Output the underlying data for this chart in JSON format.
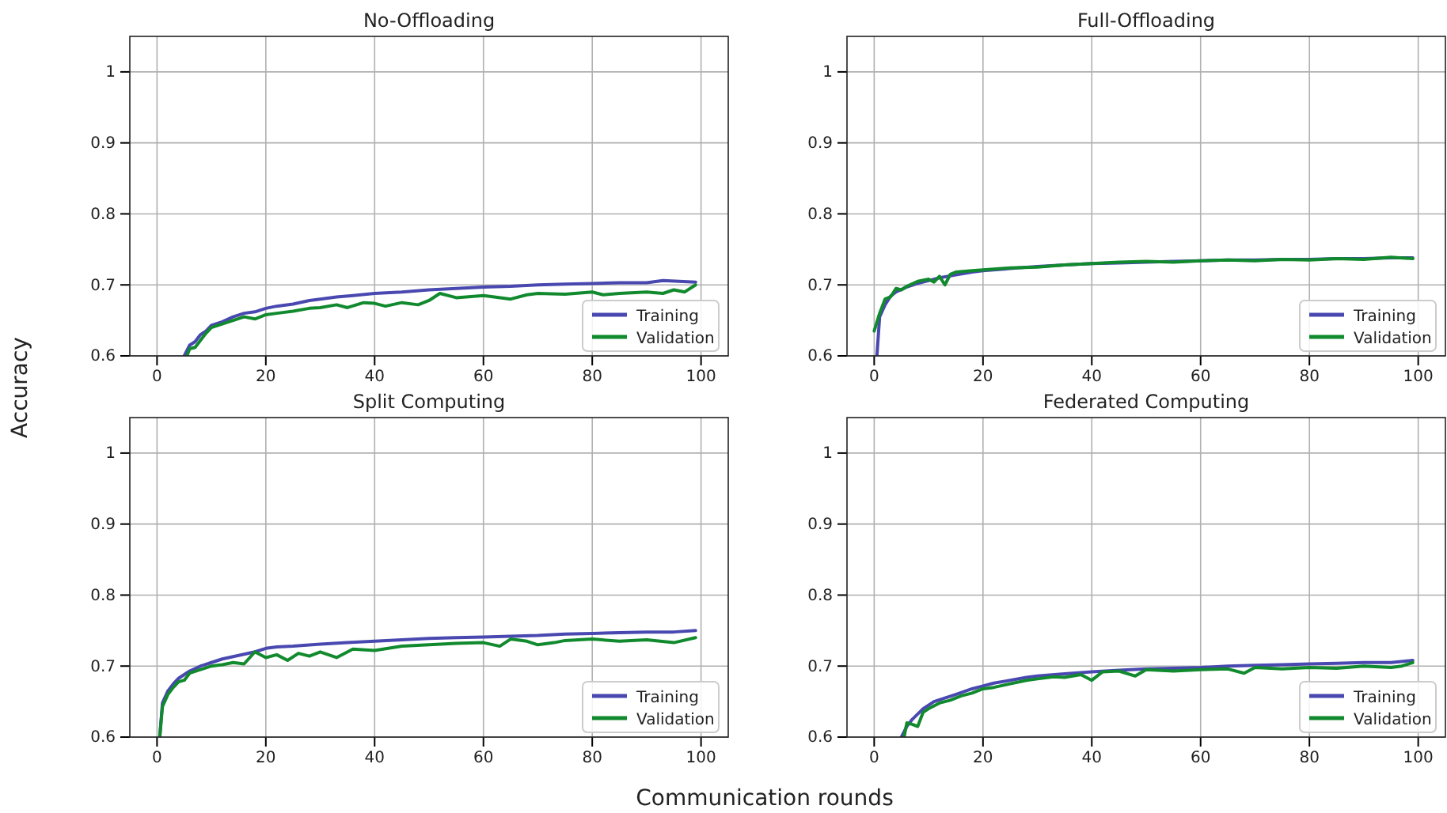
{
  "chart_data": [
    {
      "type": "line",
      "title": "No-Offloading",
      "ylabel": "Accuracy",
      "xlim": [
        -5,
        105
      ],
      "ylim": [
        0.6,
        1.05
      ],
      "xticks": [
        0,
        20,
        40,
        60,
        80,
        100
      ],
      "yticks": [
        0.6,
        0.7,
        0.8,
        0.9,
        1.0
      ],
      "grid": true,
      "legend": "bottom right",
      "line_style": "solid",
      "marker": "none",
      "series": [
        {
          "name": "Training",
          "color": "#4848b0",
          "x": [
            5,
            6,
            7,
            8,
            9,
            10,
            12,
            14,
            16,
            18,
            20,
            22,
            25,
            28,
            30,
            33,
            36,
            40,
            45,
            50,
            55,
            60,
            65,
            70,
            75,
            80,
            85,
            90,
            93,
            96,
            99
          ],
          "values": [
            0.6,
            0.615,
            0.62,
            0.63,
            0.635,
            0.643,
            0.648,
            0.655,
            0.66,
            0.662,
            0.667,
            0.67,
            0.673,
            0.678,
            0.68,
            0.683,
            0.685,
            0.688,
            0.69,
            0.693,
            0.695,
            0.697,
            0.698,
            0.7,
            0.701,
            0.702,
            0.703,
            0.703,
            0.706,
            0.705,
            0.704
          ]
        },
        {
          "name": "Validation",
          "color": "#118a2e",
          "x": [
            5.5,
            6,
            7,
            8,
            9,
            10,
            12,
            14,
            16,
            18,
            20,
            22,
            25,
            28,
            30,
            33,
            35,
            38,
            40,
            42,
            45,
            48,
            50,
            52,
            55,
            60,
            62,
            65,
            68,
            70,
            75,
            80,
            82,
            85,
            90,
            93,
            95,
            97,
            99
          ],
          "values": [
            0.6,
            0.61,
            0.612,
            0.622,
            0.632,
            0.64,
            0.645,
            0.65,
            0.655,
            0.652,
            0.658,
            0.66,
            0.663,
            0.667,
            0.668,
            0.672,
            0.668,
            0.675,
            0.674,
            0.67,
            0.675,
            0.672,
            0.678,
            0.688,
            0.682,
            0.685,
            0.683,
            0.68,
            0.686,
            0.688,
            0.687,
            0.69,
            0.686,
            0.688,
            0.69,
            0.688,
            0.693,
            0.69,
            0.7
          ]
        }
      ]
    },
    {
      "type": "line",
      "title": "Full-Offloading",
      "xlim": [
        -5,
        105
      ],
      "ylim": [
        0.6,
        1.05
      ],
      "xticks": [
        0,
        20,
        40,
        60,
        80,
        100
      ],
      "yticks": [
        0.6,
        0.7,
        0.8,
        0.9,
        1.0
      ],
      "grid": true,
      "legend": "bottom right",
      "line_style": "solid",
      "marker": "none",
      "series": [
        {
          "name": "Training",
          "color": "#4848b0",
          "x": [
            0.5,
            1,
            2,
            3,
            4,
            6,
            8,
            10,
            12,
            15,
            18,
            20,
            25,
            30,
            35,
            40,
            45,
            50,
            55,
            60,
            65,
            70,
            75,
            80,
            85,
            90,
            95,
            99
          ],
          "values": [
            0.6,
            0.655,
            0.672,
            0.684,
            0.69,
            0.697,
            0.702,
            0.706,
            0.71,
            0.714,
            0.718,
            0.72,
            0.723,
            0.726,
            0.728,
            0.73,
            0.731,
            0.732,
            0.733,
            0.734,
            0.735,
            0.735,
            0.736,
            0.736,
            0.737,
            0.737,
            0.738,
            0.738
          ]
        },
        {
          "name": "Validation",
          "color": "#118a2e",
          "x": [
            0,
            1,
            2,
            3,
            4,
            5,
            6,
            8,
            10,
            11,
            12,
            13,
            14,
            15,
            18,
            20,
            25,
            30,
            35,
            40,
            45,
            50,
            55,
            60,
            65,
            70,
            75,
            80,
            85,
            90,
            95,
            99
          ],
          "values": [
            0.635,
            0.66,
            0.68,
            0.683,
            0.695,
            0.693,
            0.698,
            0.705,
            0.708,
            0.704,
            0.712,
            0.7,
            0.715,
            0.718,
            0.72,
            0.721,
            0.724,
            0.725,
            0.728,
            0.73,
            0.732,
            0.733,
            0.732,
            0.734,
            0.735,
            0.734,
            0.736,
            0.735,
            0.737,
            0.736,
            0.739,
            0.737
          ]
        }
      ]
    },
    {
      "type": "line",
      "title": "Split Computing",
      "xlabel": "Communication rounds",
      "xlim": [
        -5,
        105
      ],
      "ylim": [
        0.6,
        1.05
      ],
      "xticks": [
        0,
        20,
        40,
        60,
        80,
        100
      ],
      "yticks": [
        0.6,
        0.7,
        0.8,
        0.9,
        1.0
      ],
      "grid": true,
      "legend": "bottom right",
      "line_style": "solid",
      "marker": "none",
      "series": [
        {
          "name": "Training",
          "color": "#4848b0",
          "x": [
            0.5,
            1,
            2,
            3,
            4,
            6,
            8,
            10,
            12,
            15,
            18,
            20,
            22,
            25,
            30,
            35,
            40,
            45,
            50,
            55,
            60,
            65,
            70,
            75,
            80,
            85,
            90,
            95,
            99
          ],
          "values": [
            0.6,
            0.648,
            0.665,
            0.675,
            0.683,
            0.693,
            0.7,
            0.705,
            0.71,
            0.715,
            0.72,
            0.725,
            0.727,
            0.728,
            0.731,
            0.733,
            0.735,
            0.737,
            0.739,
            0.74,
            0.741,
            0.742,
            0.743,
            0.745,
            0.746,
            0.747,
            0.748,
            0.748,
            0.75
          ]
        },
        {
          "name": "Validation",
          "color": "#118a2e",
          "x": [
            0.5,
            1,
            2,
            3,
            4,
            5,
            6,
            8,
            10,
            12,
            14,
            16,
            18,
            20,
            22,
            24,
            26,
            28,
            30,
            33,
            36,
            40,
            45,
            50,
            55,
            60,
            63,
            65,
            68,
            70,
            73,
            75,
            80,
            85,
            90,
            95,
            99
          ],
          "values": [
            0.6,
            0.643,
            0.66,
            0.67,
            0.678,
            0.68,
            0.69,
            0.695,
            0.7,
            0.702,
            0.705,
            0.703,
            0.72,
            0.712,
            0.716,
            0.708,
            0.718,
            0.714,
            0.72,
            0.712,
            0.724,
            0.722,
            0.728,
            0.73,
            0.732,
            0.733,
            0.728,
            0.738,
            0.735,
            0.73,
            0.733,
            0.736,
            0.738,
            0.735,
            0.737,
            0.733,
            0.74
          ]
        }
      ]
    },
    {
      "type": "line",
      "title": "Federated Computing",
      "xlim": [
        -5,
        105
      ],
      "ylim": [
        0.6,
        1.05
      ],
      "xticks": [
        0,
        20,
        40,
        60,
        80,
        100
      ],
      "yticks": [
        0.6,
        0.7,
        0.8,
        0.9,
        1.0
      ],
      "grid": true,
      "legend": "bottom right",
      "line_style": "solid",
      "marker": "none",
      "series": [
        {
          "name": "Training",
          "color": "#4848b0",
          "x": [
            5,
            6,
            7,
            9,
            11,
            13,
            15,
            18,
            20,
            22,
            25,
            28,
            30,
            35,
            40,
            45,
            50,
            55,
            60,
            65,
            70,
            75,
            80,
            85,
            90,
            95,
            99
          ],
          "values": [
            0.6,
            0.615,
            0.625,
            0.64,
            0.65,
            0.655,
            0.66,
            0.668,
            0.672,
            0.676,
            0.68,
            0.684,
            0.686,
            0.689,
            0.692,
            0.694,
            0.696,
            0.697,
            0.698,
            0.7,
            0.701,
            0.702,
            0.703,
            0.704,
            0.705,
            0.705,
            0.708
          ]
        },
        {
          "name": "Validation",
          "color": "#118a2e",
          "x": [
            5.5,
            6,
            7,
            8,
            9,
            10,
            12,
            14,
            16,
            18,
            20,
            22,
            25,
            28,
            30,
            33,
            35,
            38,
            40,
            42,
            45,
            48,
            50,
            55,
            60,
            65,
            68,
            70,
            75,
            80,
            85,
            90,
            95,
            97,
            99
          ],
          "values": [
            0.6,
            0.62,
            0.618,
            0.615,
            0.635,
            0.64,
            0.648,
            0.652,
            0.658,
            0.662,
            0.668,
            0.67,
            0.675,
            0.68,
            0.682,
            0.685,
            0.684,
            0.688,
            0.68,
            0.692,
            0.693,
            0.686,
            0.695,
            0.693,
            0.695,
            0.696,
            0.69,
            0.698,
            0.696,
            0.698,
            0.697,
            0.7,
            0.698,
            0.7,
            0.705
          ]
        }
      ]
    }
  ]
}
